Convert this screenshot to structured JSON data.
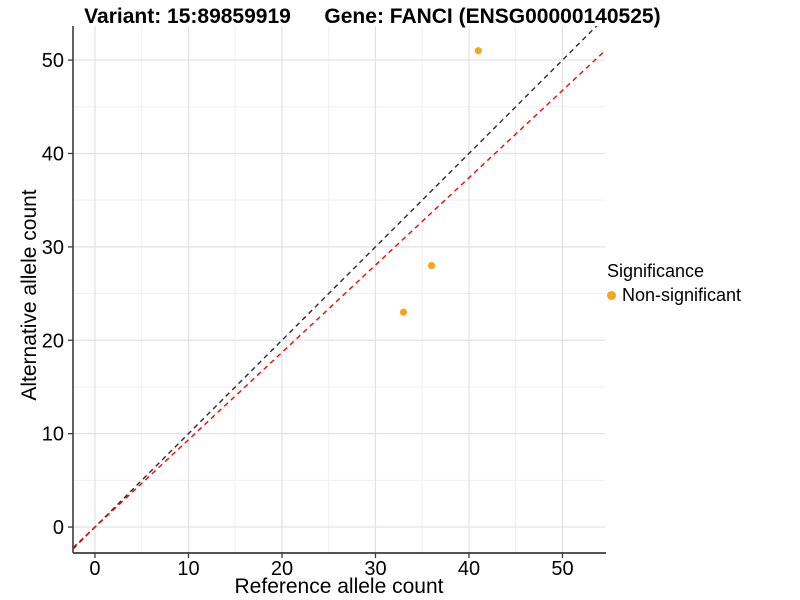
{
  "chart_data": {
    "type": "scatter",
    "title_left": "Variant: 15:89859919",
    "title_right": "Gene: FANCI (ENSG00000140525)",
    "xlabel": "Reference allele count",
    "ylabel": "Alternative allele count",
    "x_ticks": [
      0,
      10,
      20,
      30,
      40,
      50
    ],
    "y_ticks": [
      0,
      10,
      20,
      30,
      40,
      50
    ],
    "x_minor_ticks": [
      5,
      15,
      25,
      35,
      45
    ],
    "y_minor_ticks": [
      5,
      15,
      25,
      35,
      45
    ],
    "xlim": [
      -2.35,
      54.55
    ],
    "ylim": [
      -2.78,
      53.65
    ],
    "grid": true,
    "points": [
      {
        "x": 41,
        "y": 51,
        "significance": "Non-significant"
      },
      {
        "x": 36,
        "y": 28,
        "significance": "Non-significant"
      },
      {
        "x": 33,
        "y": 23,
        "significance": "Non-significant"
      }
    ],
    "point_color": "#FAA31B",
    "lines": [
      {
        "name": "identity-line",
        "slope": 1,
        "intercept": 0,
        "color": "#2b2b2b",
        "dash": "5 4"
      },
      {
        "name": "expected-ratio-line",
        "slope": 0.935,
        "intercept": 0,
        "color": "#ff0000",
        "dash": "5 4"
      }
    ],
    "legend": {
      "position": "right",
      "title": "Significance",
      "items": [
        {
          "label": "Non-significant",
          "color": "#FAA31B"
        }
      ]
    },
    "colors": {
      "major_grid": "#e2e2e2",
      "minor_grid": "#efefef",
      "axis_line": "#3c3c3c",
      "tick_label": "#000000"
    }
  }
}
